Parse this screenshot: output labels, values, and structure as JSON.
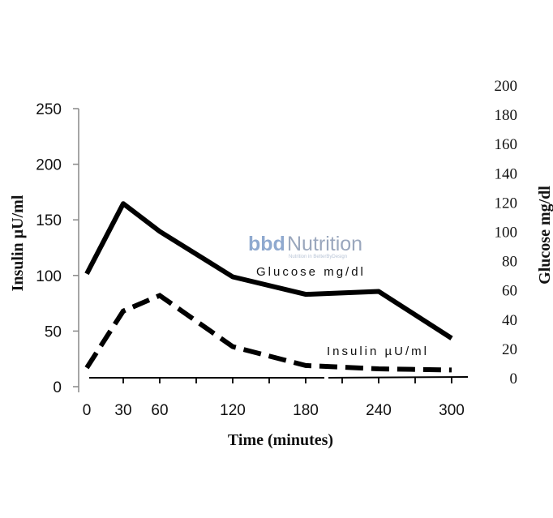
{
  "chart_data": {
    "type": "line",
    "title": "",
    "xlabel": "Time (minutes)",
    "ylabel_left": "Insulin µU/ml",
    "ylabel_right": "Glucose mg/dl",
    "x": [
      0,
      30,
      60,
      120,
      180,
      240,
      300
    ],
    "x_ticks": [
      0,
      30,
      60,
      120,
      180,
      240,
      300
    ],
    "x_minor_ticks": [
      30,
      60,
      90,
      120,
      150,
      180,
      210,
      240,
      270,
      300
    ],
    "xlim": [
      0,
      310
    ],
    "ylim_left": [
      0,
      250
    ],
    "ylim_right": [
      0,
      200
    ],
    "y_ticks_left": [
      0,
      50,
      100,
      150,
      200,
      250
    ],
    "y_ticks_right": [
      0,
      20,
      40,
      60,
      80,
      100,
      120,
      140,
      160,
      180,
      200
    ],
    "grid": false,
    "series": [
      {
        "name": "Glucose mg/dl",
        "axis": "right",
        "style": "solid",
        "color": "#000000",
        "values": [
          71,
          119,
          100,
          69,
          57,
          59,
          27
        ]
      },
      {
        "name": "Insulin µU/ml",
        "axis": "left",
        "style": "dashed",
        "color": "#000000",
        "values": [
          17,
          68,
          82,
          36,
          19,
          16,
          15
        ]
      }
    ],
    "annotations": [
      {
        "text": "Glucose mg/dl",
        "series": "Glucose mg/dl"
      },
      {
        "text": "Insulin µU/ml",
        "series": "Insulin µU/ml"
      }
    ]
  },
  "watermark": {
    "logo": "bbd",
    "name": "Nutrition",
    "tagline": "Nutrition in BetterByDesign"
  }
}
